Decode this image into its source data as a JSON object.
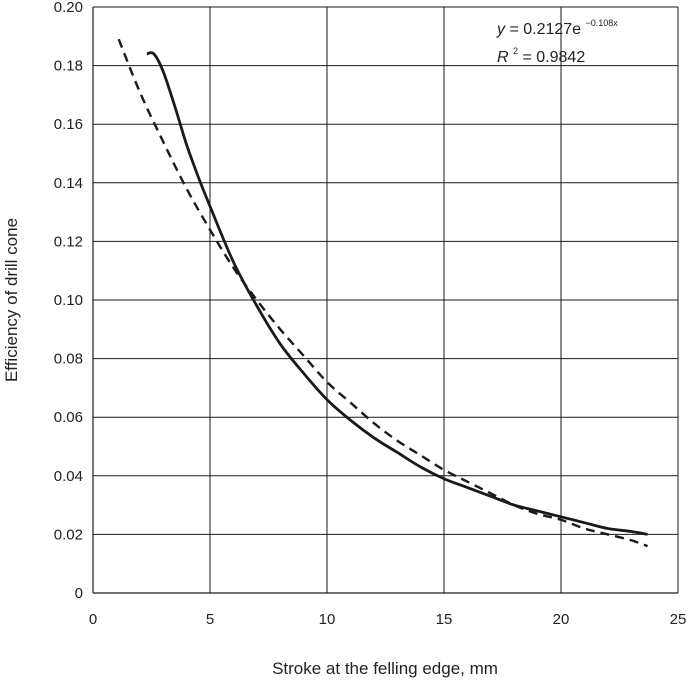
{
  "chart_data": {
    "type": "line",
    "xlabel": "Stroke at the felling edge, mm",
    "ylabel": "Efficiency of drill cone",
    "xlim": [
      0,
      25
    ],
    "ylim": [
      0,
      0.2
    ],
    "x_ticks": [
      "0",
      "5",
      "10",
      "15",
      "20",
      "25"
    ],
    "y_ticks": [
      "0",
      "0.02",
      "0.04",
      "0.06",
      "0.08",
      "0.10",
      "0.12",
      "0.14",
      "0.16",
      "0.18",
      "0.20"
    ],
    "grid": true,
    "series": [
      {
        "style": "solid",
        "color": "#1a1a1a",
        "x": [
          2.3,
          2.6,
          3.0,
          3.5,
          4.0,
          4.5,
          5.0,
          6.0,
          7.0,
          8.0,
          9.0,
          10.0,
          11.0,
          12.0,
          13.0,
          14.0,
          15.0,
          16.0,
          17.0,
          18.0,
          19.0,
          20.0,
          21.0,
          22.0,
          23.0,
          23.7
        ],
        "y": [
          0.184,
          0.184,
          0.178,
          0.166,
          0.153,
          0.142,
          0.132,
          0.113,
          0.098,
          0.085,
          0.075,
          0.066,
          0.059,
          0.053,
          0.048,
          0.043,
          0.039,
          0.036,
          0.033,
          0.03,
          0.028,
          0.026,
          0.024,
          0.022,
          0.021,
          0.02
        ]
      },
      {
        "style": "dashed",
        "color": "#1a1a1a",
        "x": [
          1.1,
          2,
          3,
          4,
          5,
          6,
          7,
          8,
          9,
          10,
          11,
          12,
          13,
          14,
          15,
          16,
          17,
          18,
          19,
          20,
          21,
          22,
          23,
          23.7
        ],
        "y": [
          0.189,
          0.171,
          0.154,
          0.138,
          0.124,
          0.111,
          0.1,
          0.09,
          0.081,
          0.072,
          0.065,
          0.058,
          0.052,
          0.047,
          0.042,
          0.038,
          0.034,
          0.03,
          0.027,
          0.025,
          0.022,
          0.02,
          0.018,
          0.016
        ]
      }
    ],
    "annotation": {
      "eq_var": "y",
      "eq_body": " = 0.2127e",
      "eq_exp": "−0.108x",
      "r2_var": "R",
      "r2_sup": "2",
      "r2_body": " = 0.9842",
      "placement": "top-right"
    }
  }
}
